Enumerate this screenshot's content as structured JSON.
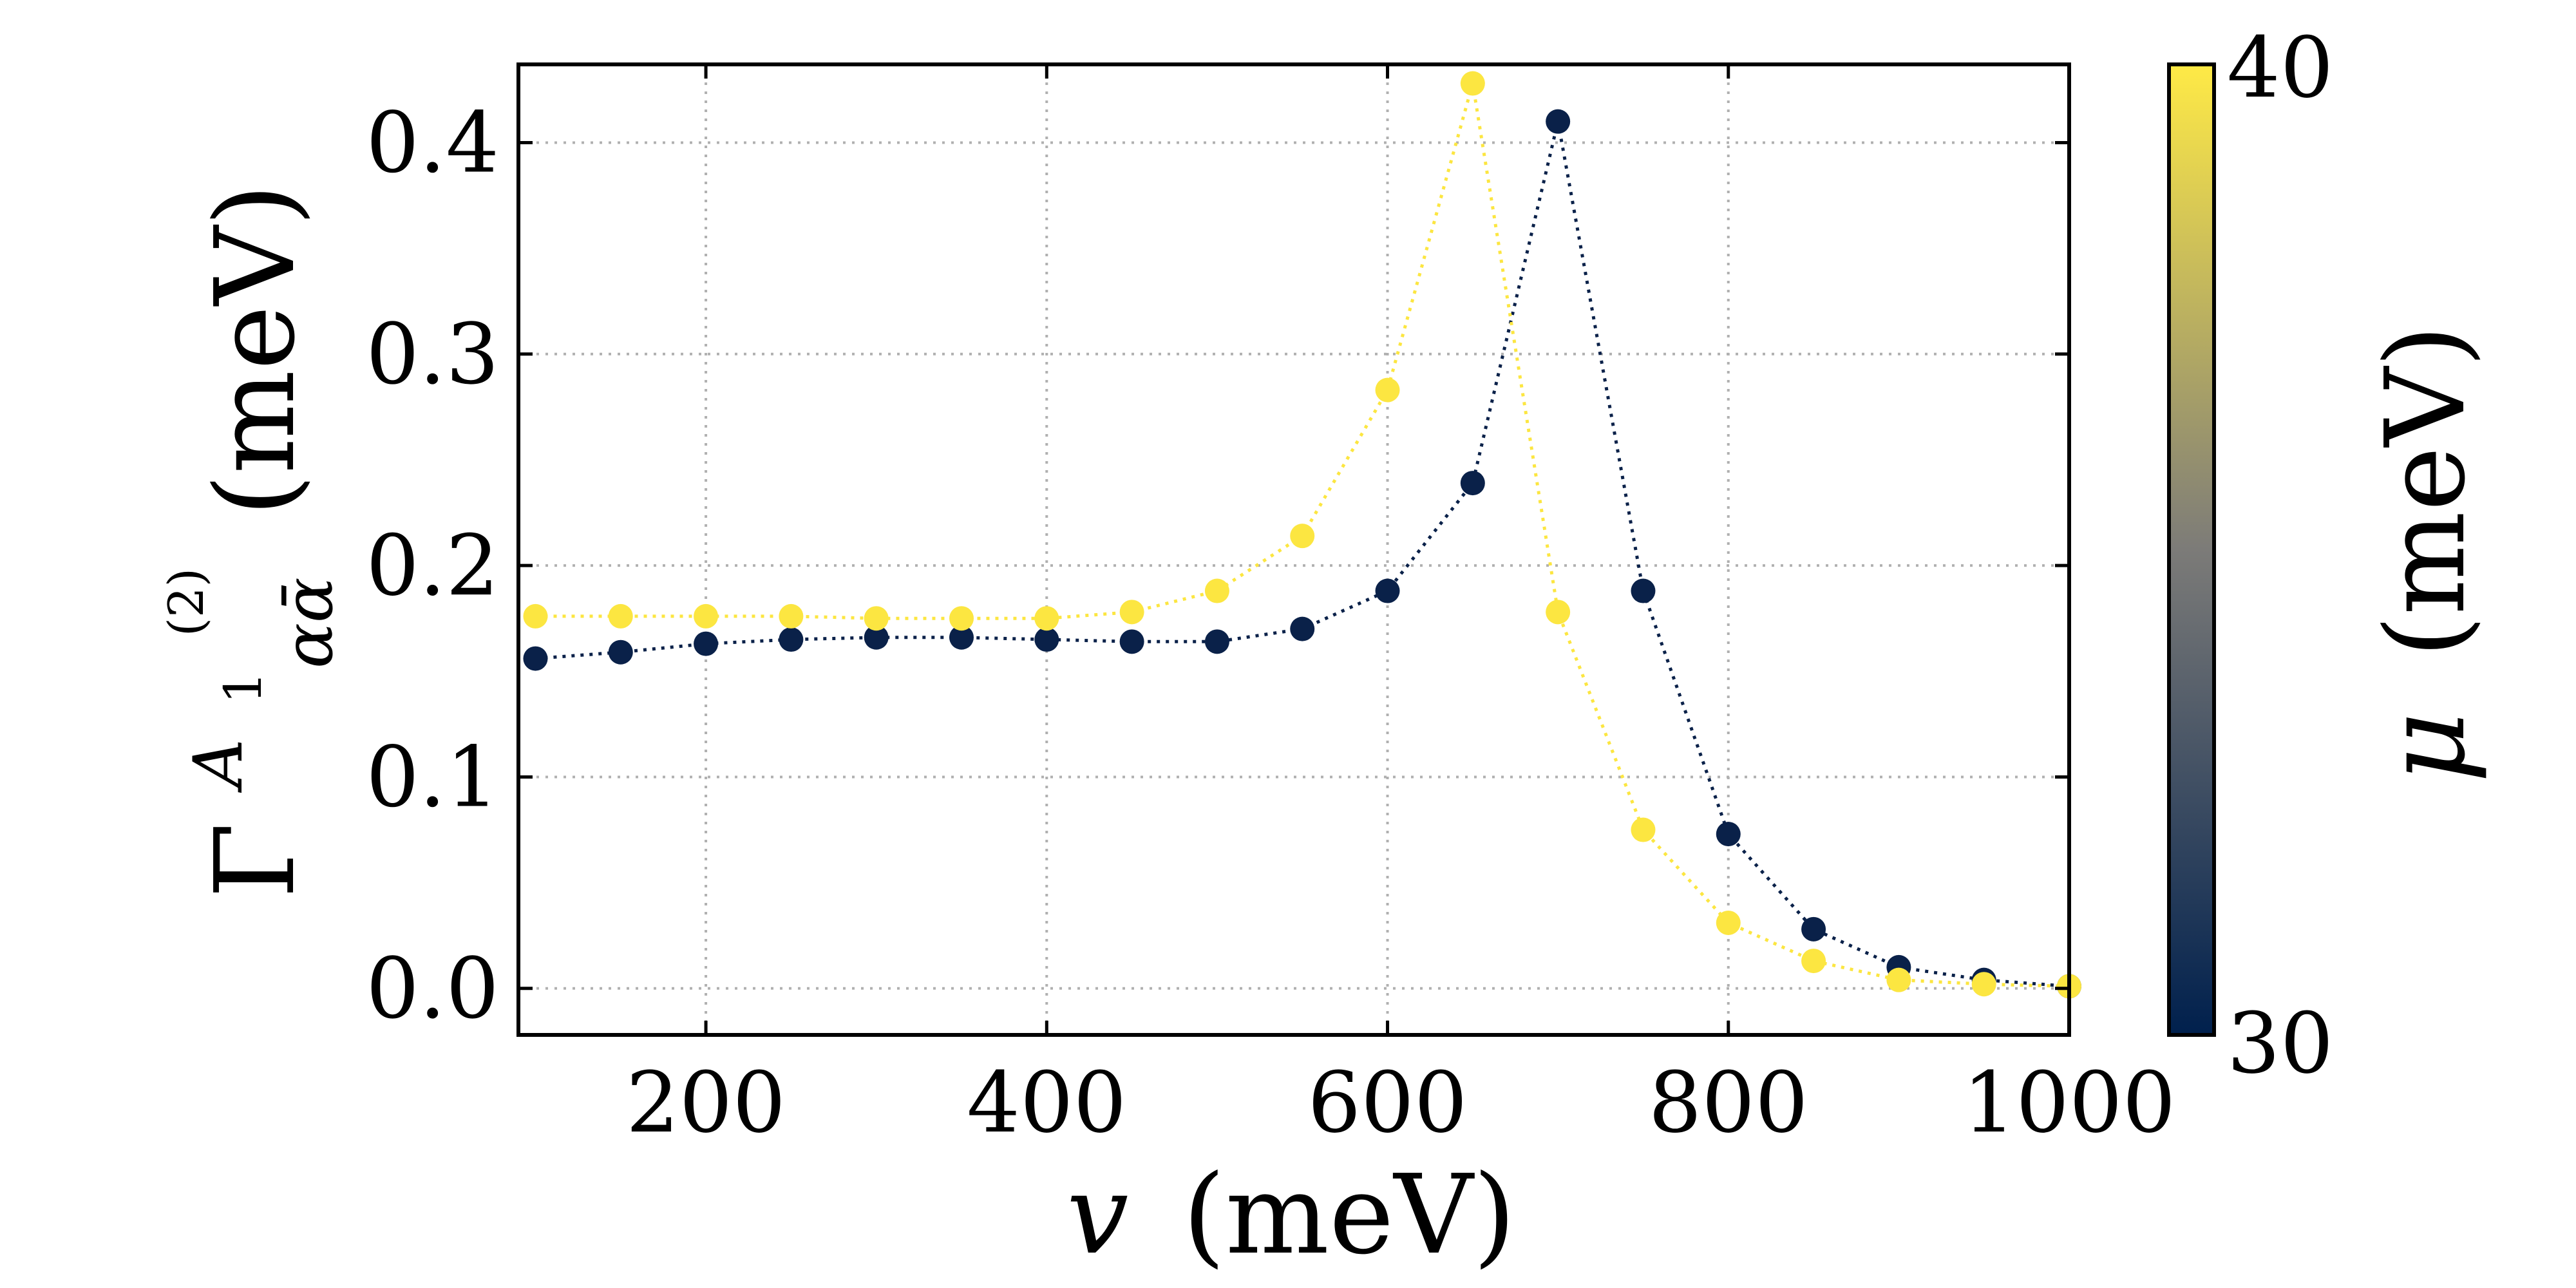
{
  "chart_data": {
    "type": "line",
    "title": "",
    "xlabel": "v (meV)",
    "xlabel_var": "v",
    "xlabel_unit": "(meV)",
    "ylabel": "Γ^{A1(2)}_{α ᾱ} (meV)",
    "ylabel_sym": "Γ",
    "ylabel_sup": "A",
    "ylabel_sup_sub": "1",
    "ylabel_sup_paren": "(2)",
    "ylabel_sub": "αᾱ",
    "ylabel_unit": "(meV)",
    "xlim": [
      90,
      1000
    ],
    "ylim": [
      -0.022,
      0.437
    ],
    "xticks": [
      200,
      400,
      600,
      800,
      1000
    ],
    "xtick_labels": [
      "200",
      "400",
      "600",
      "800",
      "1000"
    ],
    "yticks": [
      0.0,
      0.1,
      0.2,
      0.3,
      0.4
    ],
    "ytick_labels": [
      "0.0",
      "0.1",
      "0.2",
      "0.3",
      "0.4"
    ],
    "grid": true,
    "line_style": "dotted",
    "x": [
      100,
      150,
      200,
      250,
      300,
      350,
      400,
      450,
      500,
      550,
      600,
      650,
      700,
      750,
      800,
      850,
      900,
      950,
      1000
    ],
    "series": [
      {
        "name": "μ = 30 meV",
        "mu": 30,
        "color": "#0a2149",
        "values": [
          0.156,
          0.159,
          0.163,
          0.165,
          0.166,
          0.166,
          0.165,
          0.164,
          0.164,
          0.17,
          0.188,
          0.239,
          0.41,
          0.188,
          0.073,
          0.028,
          0.01,
          0.004,
          0.001
        ]
      },
      {
        "name": "μ = 40 meV",
        "mu": 40,
        "color": "#fce641",
        "values": [
          0.176,
          0.176,
          0.176,
          0.176,
          0.175,
          0.175,
          0.175,
          0.178,
          0.188,
          0.214,
          0.283,
          0.428,
          0.178,
          0.075,
          0.031,
          0.013,
          0.004,
          0.002,
          0.001
        ]
      }
    ],
    "colorbar": {
      "label_var": "μ",
      "label_unit": "(meV)",
      "min": 30,
      "max": 40,
      "min_label": "30",
      "max_label": "40",
      "color_min": "#00204d",
      "color_mid": "#7c7b78",
      "color_max": "#ffea46"
    }
  }
}
